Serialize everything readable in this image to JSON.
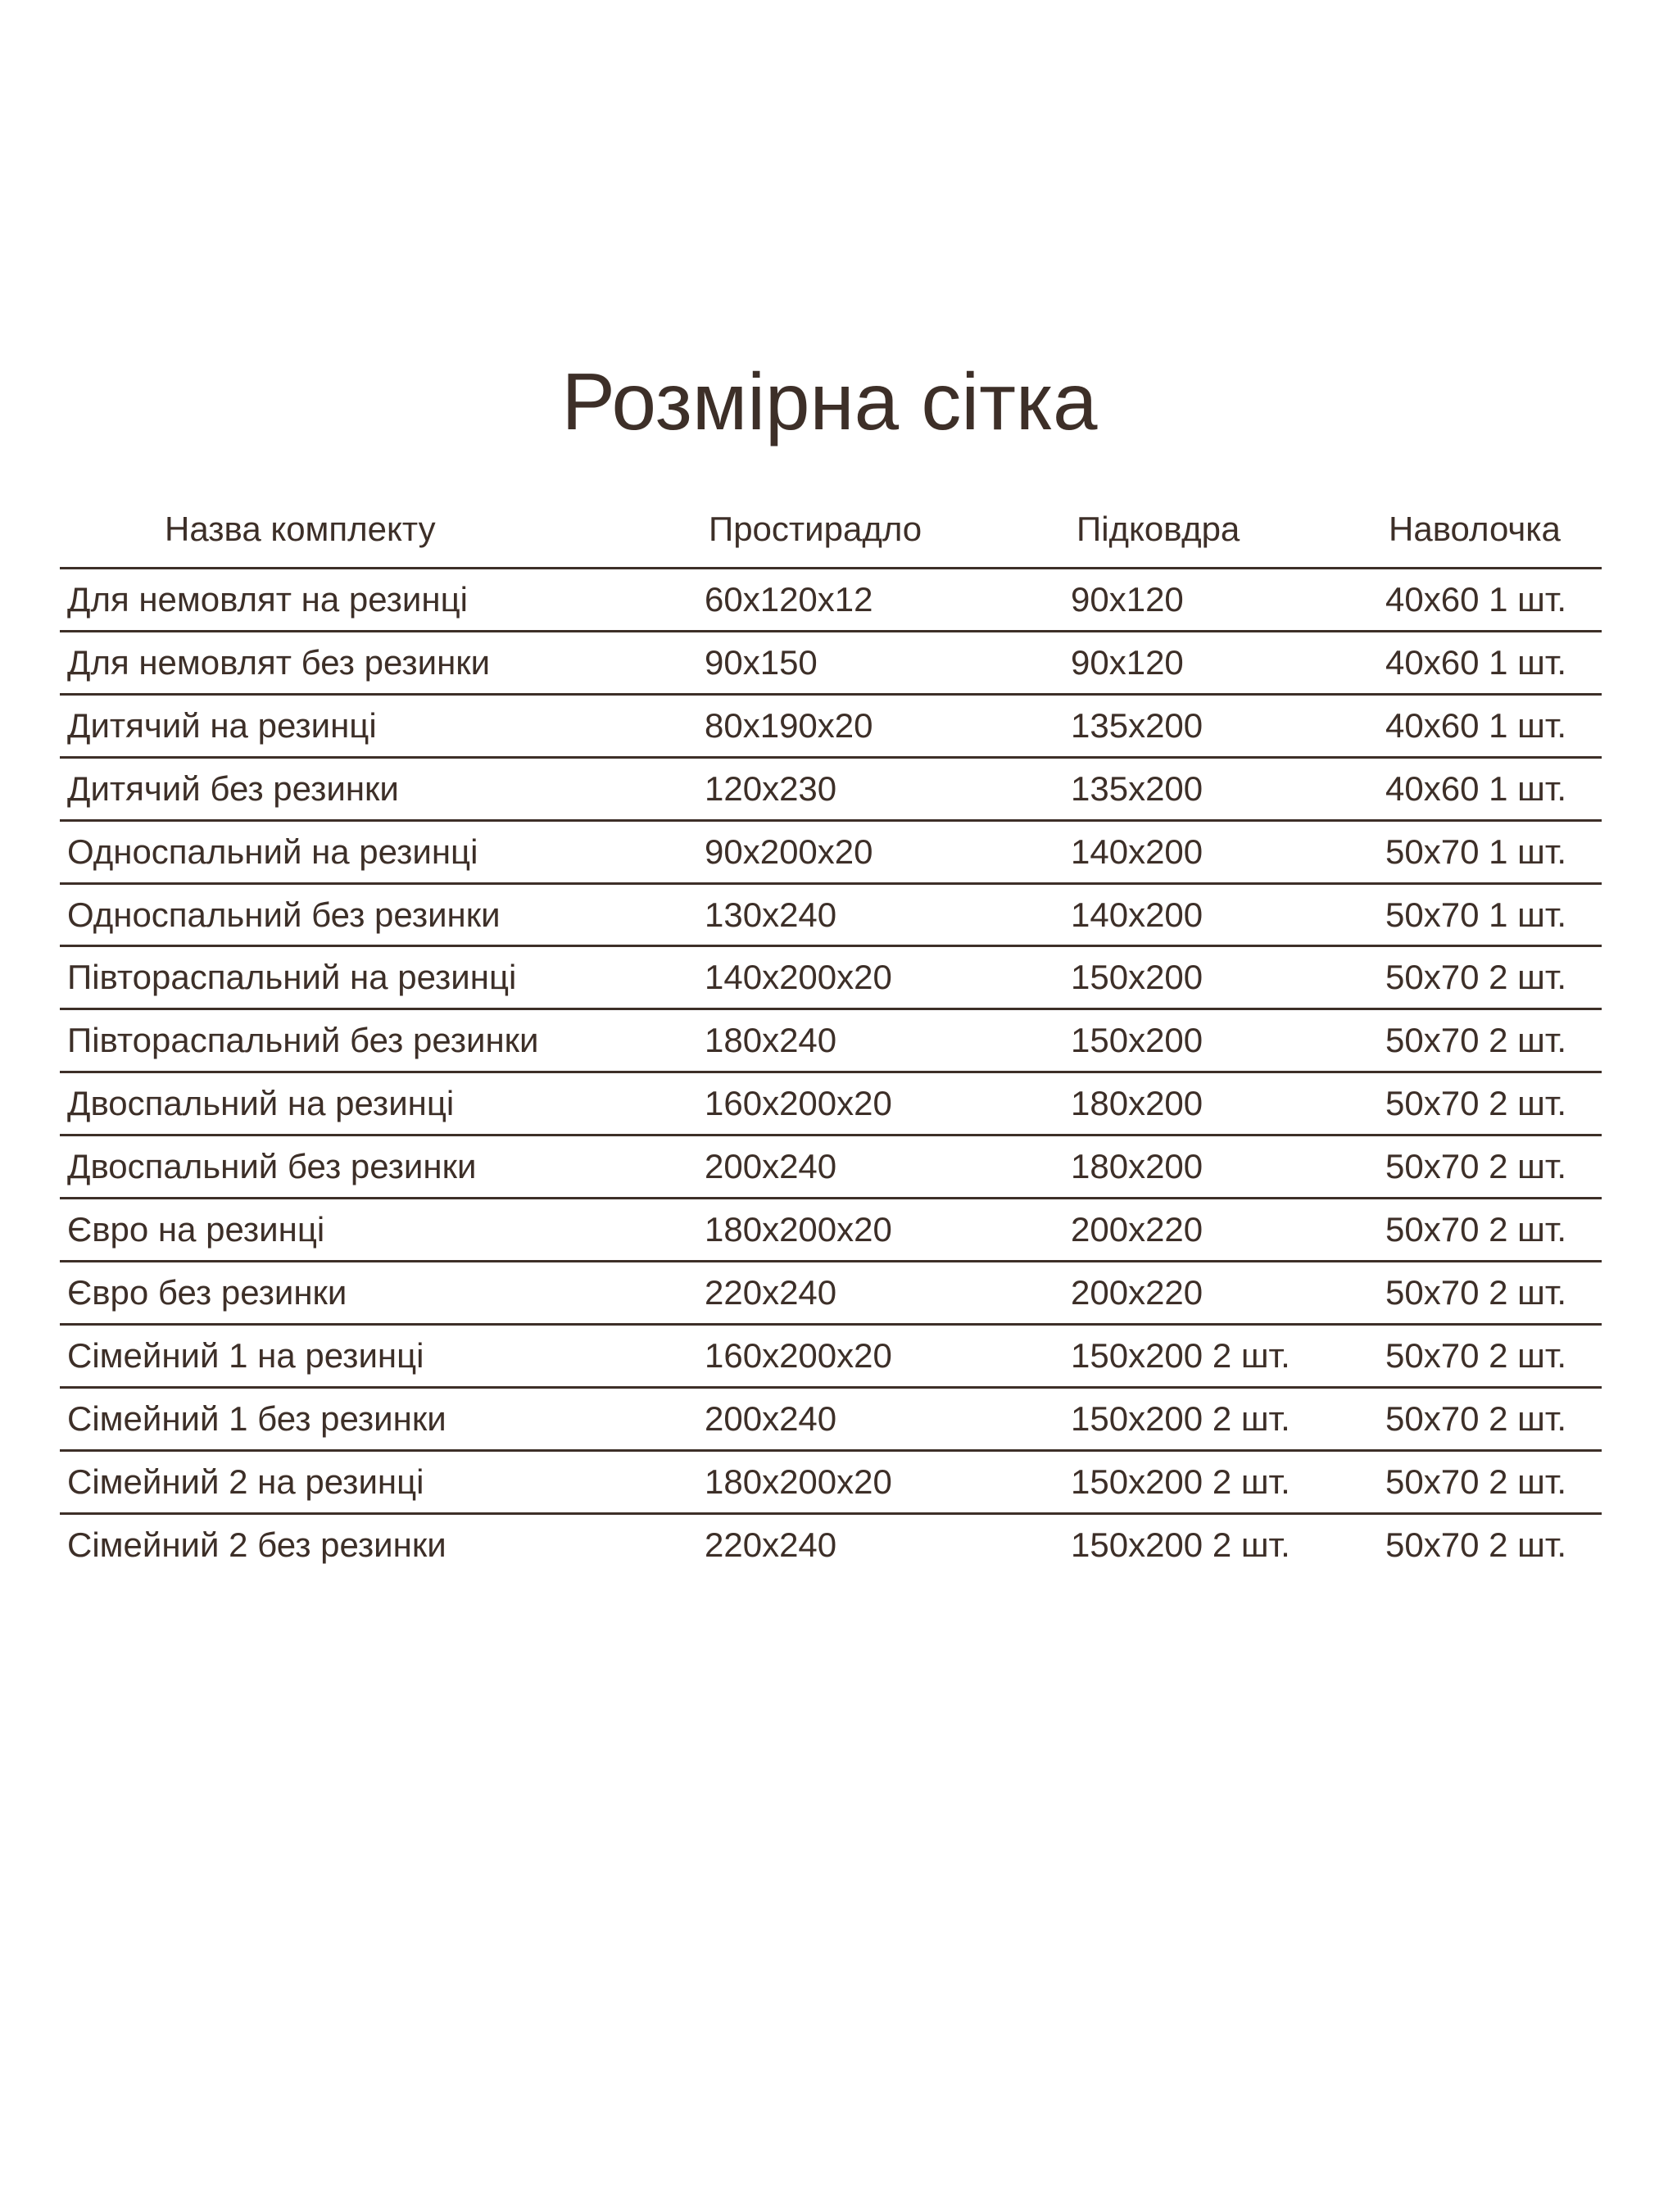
{
  "title": "Розмірна сітка",
  "columns": [
    "Назва комплекту",
    "Простирадло",
    "Підковдра",
    "Наволочка"
  ],
  "rows": [
    [
      "Для немовлят на резинці",
      "60x120x12",
      "90x120",
      "40x60 1 шт."
    ],
    [
      "Для немовлят без резинки",
      "90x150",
      "90x120",
      "40x60 1 шт."
    ],
    [
      "Дитячий на резинці",
      "80x190x20",
      "135x200",
      "40x60 1 шт."
    ],
    [
      "Дитячий без резинки",
      "120x230",
      "135x200",
      "40x60 1 шт."
    ],
    [
      "Односпальний на резинці",
      "90x200x20",
      "140x200",
      "50x70 1 шт."
    ],
    [
      "Односпальний без резинки",
      "130x240",
      "140x200",
      "50x70 1 шт."
    ],
    [
      "Півтораспальний на резинці",
      "140x200x20",
      "150x200",
      "50x70 2 шт."
    ],
    [
      "Півтораспальний без резинки",
      "180x240",
      "150x200",
      "50x70 2 шт."
    ],
    [
      "Двоспальний на резинці",
      "160x200x20",
      "180x200",
      "50x70 2 шт."
    ],
    [
      "Двоспальний без резинки",
      "200x240",
      "180x200",
      "50x70 2 шт."
    ],
    [
      "Євро на резинці",
      "180x200x20",
      "200x220",
      "50x70 2 шт."
    ],
    [
      "Євро без резинки",
      "220x240",
      "200x220",
      "50x70 2 шт."
    ],
    [
      "Сімейний 1 на резинці",
      "160x200x20",
      "150x200 2 шт.",
      "50x70 2 шт."
    ],
    [
      "Сімейний 1 без резинки",
      "200x240",
      "150x200 2 шт.",
      "50x70 2 шт."
    ],
    [
      "Сімейний 2 на резинці",
      "180x200x20",
      "150x200 2 шт.",
      "50x70 2 шт."
    ],
    [
      "Сімейний 2 без резинки",
      "220x240",
      "150x200 2 шт.",
      "50x70 2 шт."
    ]
  ],
  "colors": {
    "text": "#3d2f28",
    "rule": "#3d2f28",
    "background": "#ffffff"
  }
}
